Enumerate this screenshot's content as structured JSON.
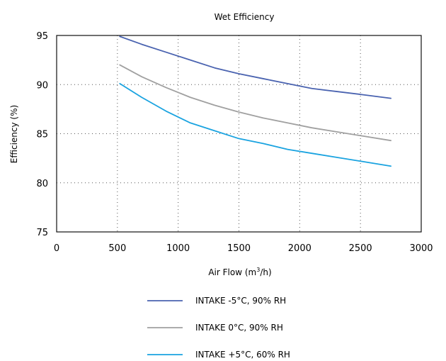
{
  "chart_data": {
    "type": "line",
    "title": "Wet Efficiency",
    "xlabel": "Air Flow (m",
    "xlabel_sup": "3",
    "xlabel_tail": "/h)",
    "ylabel": "Efficiency (%)",
    "xlim": [
      0,
      3000
    ],
    "ylim": [
      75,
      95
    ],
    "xticks": [
      0,
      500,
      1000,
      1500,
      2000,
      2500,
      3000
    ],
    "yticks": [
      75,
      80,
      85,
      90,
      95
    ],
    "xtick_labels": [
      "0",
      "500",
      "1000",
      "1500",
      "2000",
      "2500",
      "3000"
    ],
    "ytick_labels": [
      "75",
      "80",
      "85",
      "90",
      "95"
    ],
    "grid": "dotted",
    "legend_position": "bottom",
    "series": [
      {
        "name": "INTAKE -5°C, 90% RH",
        "color": "#4a63b0",
        "x": [
          520,
          700,
          900,
          1100,
          1300,
          1500,
          1700,
          1900,
          2100,
          2300,
          2500,
          2750
        ],
        "y": [
          94.9,
          94.1,
          93.3,
          92.5,
          91.7,
          91.1,
          90.6,
          90.1,
          89.6,
          89.3,
          89.0,
          88.6
        ]
      },
      {
        "name": "INTAKE 0°C, 90% RH",
        "color": "#a0a0a0",
        "x": [
          520,
          700,
          900,
          1100,
          1300,
          1500,
          1700,
          1900,
          2100,
          2300,
          2500,
          2750
        ],
        "y": [
          92.0,
          90.8,
          89.7,
          88.7,
          87.9,
          87.2,
          86.6,
          86.1,
          85.6,
          85.2,
          84.8,
          84.3
        ]
      },
      {
        "name": "INTAKE +5°C, 60% RH",
        "color": "#1aa3e0",
        "x": [
          520,
          700,
          900,
          1100,
          1300,
          1500,
          1700,
          1900,
          2100,
          2300,
          2500,
          2750
        ],
        "y": [
          90.1,
          88.7,
          87.3,
          86.1,
          85.3,
          84.5,
          84.0,
          83.4,
          83.0,
          82.6,
          82.2,
          81.7
        ]
      }
    ]
  }
}
